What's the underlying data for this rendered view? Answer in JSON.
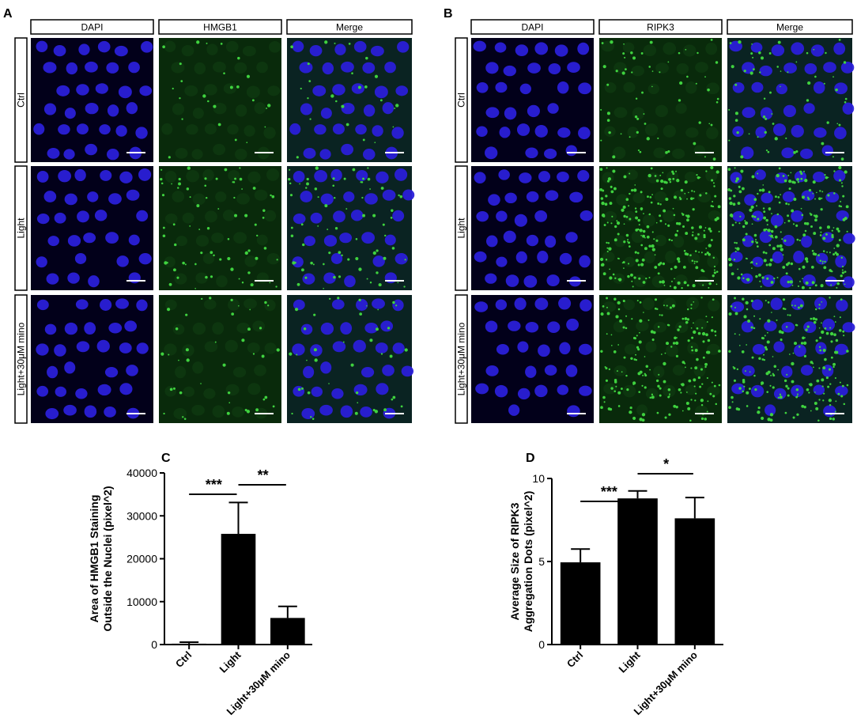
{
  "panels": {
    "A": {
      "letter": "A",
      "columns": [
        "DAPI",
        "HMGB1",
        "Merge"
      ],
      "rows": [
        "Ctrl",
        "Light",
        "Light+30μM mino"
      ]
    },
    "B": {
      "letter": "B",
      "columns": [
        "DAPI",
        "RIPK3",
        "Merge"
      ],
      "rows": [
        "Ctrl",
        "Light",
        "Light+30μM mino"
      ]
    }
  },
  "colors": {
    "dapi": "#2a1fd8",
    "green": "#3fd23f",
    "bar": "#000000"
  },
  "chart_data": [
    {
      "panel": "C",
      "type": "bar",
      "ylabel": [
        "Area of HMGB1 Staining",
        "Outside the Nuclei (pixel^2)"
      ],
      "categories": [
        "Ctrl",
        "Light",
        "Light+30μM mino"
      ],
      "values": [
        200,
        25800,
        6200
      ],
      "errors": [
        350,
        7300,
        2700
      ],
      "ylim": [
        0,
        40000
      ],
      "yticks": [
        0,
        10000,
        20000,
        30000,
        40000
      ],
      "significance": [
        {
          "from": 0,
          "to": 1,
          "label": "***"
        },
        {
          "from": 1,
          "to": 2,
          "label": "**"
        }
      ]
    },
    {
      "panel": "D",
      "type": "bar",
      "ylabel": [
        "Average Size of RIPK3",
        "Aggregation Dots (pixel^2)"
      ],
      "categories": [
        "Ctrl",
        "Light",
        "Light+30μM mino"
      ],
      "values": [
        4.95,
        8.8,
        7.6
      ],
      "errors": [
        0.8,
        0.45,
        1.25
      ],
      "ylim": [
        0,
        10
      ],
      "yticks": [
        0,
        5,
        10
      ],
      "significance": [
        {
          "from": 0,
          "to": 1,
          "label": "***"
        },
        {
          "from": 1,
          "to": 2,
          "label": "*"
        }
      ]
    }
  ]
}
